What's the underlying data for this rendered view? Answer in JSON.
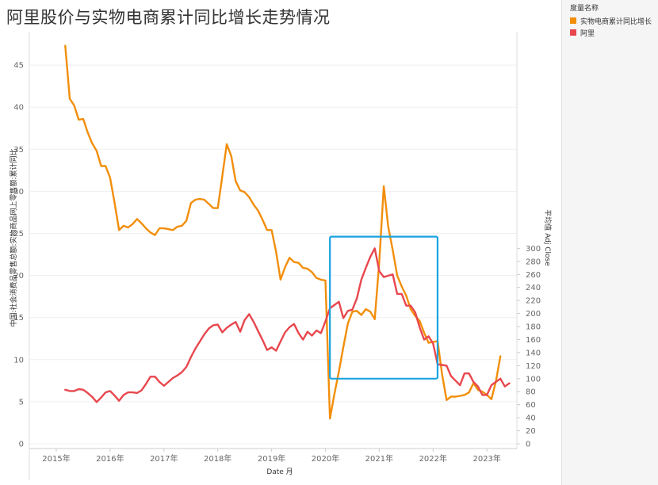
{
  "page": {
    "title": "阿里股价与实物电商累计同比增长走势情况"
  },
  "legend": {
    "title": "度量名称",
    "items": [
      {
        "label": "实物电商累计同比增长",
        "color": "#F28E0B"
      },
      {
        "label": "阿里",
        "color": "#E8474E"
      }
    ]
  },
  "chart_data": {
    "type": "line",
    "title": "阿里股价与实物电商累计同比增长走势情况",
    "xlabel": "Date 月",
    "ylabel_left": "中国:社会消费品零售总额:实物商品网上零售额:累计同比",
    "ylabel_right": "平均值 Adj Close",
    "x_ticks": [
      "2015年",
      "2016年",
      "2017年",
      "2018年",
      "2019年",
      "2020年",
      "2021年",
      "2022年",
      "2023年"
    ],
    "y_left_ticks": [
      0,
      5,
      10,
      15,
      20,
      25,
      30,
      35,
      40,
      45
    ],
    "y_right_ticks": [
      0,
      20,
      40,
      60,
      80,
      100,
      120,
      140,
      160,
      180,
      200,
      220,
      240,
      260,
      280,
      300
    ],
    "ylim_left": [
      0,
      48
    ],
    "ylim_right": [
      0,
      316
    ],
    "grid": "horizontal",
    "legend_position": "right",
    "highlight_box": {
      "x_start": "2020-02",
      "x_end": "2022-02",
      "y_top_right": 318,
      "y_bottom_right": 100,
      "color": "#1AA3E0"
    },
    "series": [
      {
        "name": "实物电商累计同比增长",
        "color": "#F28E0B",
        "axis": "left",
        "points": [
          [
            "2015-03",
            47.3
          ],
          [
            "2015-04",
            41.0
          ],
          [
            "2015-05",
            40.2
          ],
          [
            "2015-06",
            38.5
          ],
          [
            "2015-07",
            38.6
          ],
          [
            "2015-08",
            37.0
          ],
          [
            "2015-09",
            35.7
          ],
          [
            "2015-10",
            34.8
          ],
          [
            "2015-11",
            33.0
          ],
          [
            "2015-12",
            33.0
          ],
          [
            "2016-01",
            31.6
          ],
          [
            "2016-02",
            28.6
          ],
          [
            "2016-03",
            25.4
          ],
          [
            "2016-04",
            25.9
          ],
          [
            "2016-05",
            25.7
          ],
          [
            "2016-06",
            26.1
          ],
          [
            "2016-07",
            26.7
          ],
          [
            "2016-08",
            26.2
          ],
          [
            "2016-09",
            25.6
          ],
          [
            "2016-10",
            25.1
          ],
          [
            "2016-11",
            24.8
          ],
          [
            "2016-12",
            25.6
          ],
          [
            "2017-01",
            25.6
          ],
          [
            "2017-02",
            25.5
          ],
          [
            "2017-03",
            25.4
          ],
          [
            "2017-04",
            25.8
          ],
          [
            "2017-05",
            25.9
          ],
          [
            "2017-06",
            26.5
          ],
          [
            "2017-07",
            28.6
          ],
          [
            "2017-08",
            29.0
          ],
          [
            "2017-09",
            29.1
          ],
          [
            "2017-10",
            29.0
          ],
          [
            "2017-11",
            28.5
          ],
          [
            "2017-12",
            28.0
          ],
          [
            "2018-01",
            28.0
          ],
          [
            "2018-02",
            31.8
          ],
          [
            "2018-03",
            35.6
          ],
          [
            "2018-04",
            34.2
          ],
          [
            "2018-05",
            31.2
          ],
          [
            "2018-06",
            30.1
          ],
          [
            "2018-07",
            29.9
          ],
          [
            "2018-08",
            29.3
          ],
          [
            "2018-09",
            28.4
          ],
          [
            "2018-10",
            27.7
          ],
          [
            "2018-11",
            26.6
          ],
          [
            "2018-12",
            25.4
          ],
          [
            "2019-01",
            25.4
          ],
          [
            "2019-02",
            22.8
          ],
          [
            "2019-03",
            19.5
          ],
          [
            "2019-04",
            21.0
          ],
          [
            "2019-05",
            22.1
          ],
          [
            "2019-06",
            21.6
          ],
          [
            "2019-07",
            21.5
          ],
          [
            "2019-08",
            20.9
          ],
          [
            "2019-09",
            20.8
          ],
          [
            "2019-10",
            20.4
          ],
          [
            "2019-11",
            19.7
          ],
          [
            "2019-12",
            19.5
          ],
          [
            "2020-01",
            19.4
          ],
          [
            "2020-02",
            3.0
          ],
          [
            "2020-03",
            5.9
          ],
          [
            "2020-04",
            8.6
          ],
          [
            "2020-05",
            11.5
          ],
          [
            "2020-06",
            14.3
          ],
          [
            "2020-07",
            15.7
          ],
          [
            "2020-08",
            15.8
          ],
          [
            "2020-09",
            15.3
          ],
          [
            "2020-10",
            16.0
          ],
          [
            "2020-11",
            15.7
          ],
          [
            "2020-12",
            14.8
          ],
          [
            "2021-01",
            21.6
          ],
          [
            "2021-02",
            30.6
          ],
          [
            "2021-03",
            25.8
          ],
          [
            "2021-04",
            23.0
          ],
          [
            "2021-05",
            20.0
          ],
          [
            "2021-06",
            18.7
          ],
          [
            "2021-07",
            17.6
          ],
          [
            "2021-08",
            16.0
          ],
          [
            "2021-09",
            15.2
          ],
          [
            "2021-10",
            14.6
          ],
          [
            "2021-11",
            13.2
          ],
          [
            "2021-12",
            12.0
          ],
          [
            "2022-01",
            12.1
          ],
          [
            "2022-02",
            12.2
          ],
          [
            "2022-03",
            8.3
          ],
          [
            "2022-04",
            5.2
          ],
          [
            "2022-05",
            5.6
          ],
          [
            "2022-06",
            5.6
          ],
          [
            "2022-07",
            5.7
          ],
          [
            "2022-08",
            5.8
          ],
          [
            "2022-09",
            6.1
          ],
          [
            "2022-10",
            7.2
          ],
          [
            "2022-11",
            6.4
          ],
          [
            "2022-12",
            6.2
          ],
          [
            "2023-01",
            5.8
          ],
          [
            "2023-02",
            5.3
          ],
          [
            "2023-03",
            7.4
          ],
          [
            "2023-04",
            10.4
          ]
        ]
      },
      {
        "name": "阿里",
        "color": "#E8474E",
        "axis": "right",
        "points": [
          [
            "2015-03",
            83
          ],
          [
            "2015-04",
            81
          ],
          [
            "2015-05",
            81
          ],
          [
            "2015-06",
            84
          ],
          [
            "2015-07",
            83
          ],
          [
            "2015-08",
            78
          ],
          [
            "2015-09",
            72
          ],
          [
            "2015-10",
            64
          ],
          [
            "2015-11",
            71
          ],
          [
            "2015-12",
            79
          ],
          [
            "2016-01",
            81
          ],
          [
            "2016-02",
            74
          ],
          [
            "2016-03",
            66
          ],
          [
            "2016-04",
            75
          ],
          [
            "2016-05",
            79
          ],
          [
            "2016-06",
            79
          ],
          [
            "2016-07",
            78
          ],
          [
            "2016-08",
            82
          ],
          [
            "2016-09",
            92
          ],
          [
            "2016-10",
            103
          ],
          [
            "2016-11",
            103
          ],
          [
            "2016-12",
            95
          ],
          [
            "2017-01",
            89
          ],
          [
            "2017-02",
            95
          ],
          [
            "2017-03",
            101
          ],
          [
            "2017-04",
            105
          ],
          [
            "2017-05",
            110
          ],
          [
            "2017-06",
            118
          ],
          [
            "2017-07",
            133
          ],
          [
            "2017-08",
            146
          ],
          [
            "2017-09",
            157
          ],
          [
            "2017-10",
            168
          ],
          [
            "2017-11",
            177
          ],
          [
            "2017-12",
            182
          ],
          [
            "2018-01",
            183
          ],
          [
            "2018-02",
            171
          ],
          [
            "2018-03",
            178
          ],
          [
            "2018-04",
            183
          ],
          [
            "2018-05",
            187
          ],
          [
            "2018-06",
            172
          ],
          [
            "2018-07",
            190
          ],
          [
            "2018-08",
            199
          ],
          [
            "2018-09",
            187
          ],
          [
            "2018-10",
            173
          ],
          [
            "2018-11",
            159
          ],
          [
            "2018-12",
            144
          ],
          [
            "2019-01",
            148
          ],
          [
            "2019-02",
            143
          ],
          [
            "2019-03",
            157
          ],
          [
            "2019-04",
            171
          ],
          [
            "2019-05",
            179
          ],
          [
            "2019-06",
            184
          ],
          [
            "2019-07",
            170
          ],
          [
            "2019-08",
            160
          ],
          [
            "2019-09",
            172
          ],
          [
            "2019-10",
            166
          ],
          [
            "2019-11",
            174
          ],
          [
            "2019-12",
            170
          ],
          [
            "2020-01",
            188
          ],
          [
            "2020-02",
            208
          ],
          [
            "2020-03",
            213
          ],
          [
            "2020-04",
            218
          ],
          [
            "2020-05",
            193
          ],
          [
            "2020-06",
            204
          ],
          [
            "2020-07",
            206
          ],
          [
            "2020-08",
            223
          ],
          [
            "2020-09",
            252
          ],
          [
            "2020-10",
            270
          ],
          [
            "2020-11",
            287
          ],
          [
            "2020-12",
            300
          ],
          [
            "2021-01",
            265
          ],
          [
            "2021-02",
            256
          ],
          [
            "2021-03",
            258
          ],
          [
            "2021-04",
            260
          ],
          [
            "2021-05",
            230
          ],
          [
            "2021-06",
            230
          ],
          [
            "2021-07",
            212
          ],
          [
            "2021-08",
            212
          ],
          [
            "2021-09",
            202
          ],
          [
            "2021-10",
            179
          ],
          [
            "2021-11",
            160
          ],
          [
            "2021-12",
            165
          ],
          [
            "2022-01",
            154
          ],
          [
            "2022-02",
            122
          ],
          [
            "2022-03",
            121
          ],
          [
            "2022-04",
            120
          ],
          [
            "2022-05",
            104
          ],
          [
            "2022-06",
            97
          ],
          [
            "2022-07",
            90
          ],
          [
            "2022-08",
            108
          ],
          [
            "2022-09",
            108
          ],
          [
            "2022-10",
            95
          ],
          [
            "2022-11",
            88
          ],
          [
            "2022-12",
            75
          ],
          [
            "2023-01",
            75
          ],
          [
            "2023-02",
            90
          ],
          [
            "2023-03",
            95
          ],
          [
            "2023-04",
            100
          ],
          [
            "2023-05",
            88
          ],
          [
            "2023-06",
            93
          ]
        ]
      }
    ]
  }
}
